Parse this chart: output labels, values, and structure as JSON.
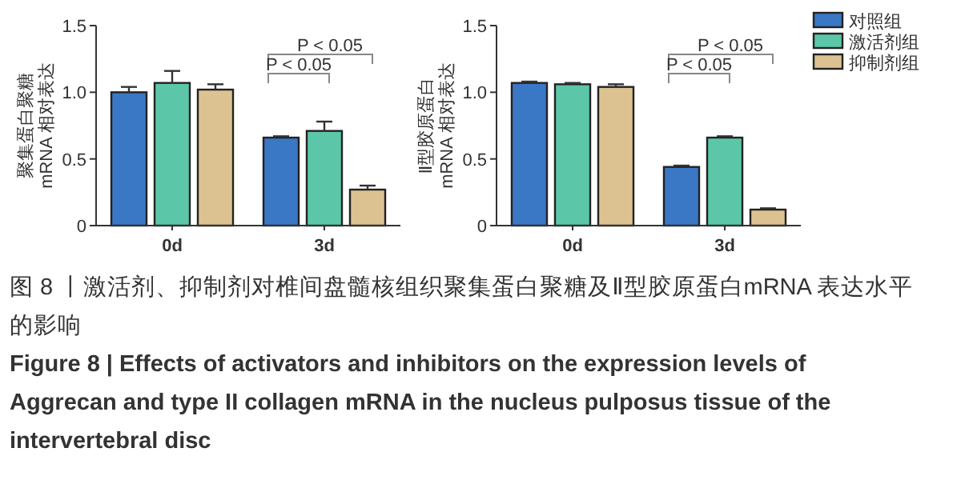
{
  "chart_data": [
    {
      "type": "bar",
      "ylabel": "聚集蛋白聚糖\nmRNA 相对表达",
      "categories": [
        "0d",
        "3d"
      ],
      "ylim": [
        0,
        1.5
      ],
      "yticks": [
        0,
        0.5,
        {
          "value": 1,
          "label": "1.0"
        },
        1.5
      ],
      "series": [
        {
          "color": "#3a77c4",
          "values": [
            1.0,
            0.66
          ],
          "errors": [
            0.04,
            0.01
          ]
        },
        {
          "color": "#5cc7a8",
          "values": [
            1.07,
            0.71
          ],
          "errors": [
            0.09,
            0.07
          ]
        },
        {
          "color": "#dcc291",
          "values": [
            1.02,
            0.27
          ],
          "errors": [
            0.04,
            0.03
          ]
        }
      ],
      "annotations": [
        "P < 0.05",
        "P < 0.05"
      ]
    },
    {
      "type": "bar",
      "ylabel": "Ⅱ型胶原蛋白\nmRNA 相对表达",
      "categories": [
        "0d",
        "3d"
      ],
      "ylim": [
        0,
        1.5
      ],
      "yticks": [
        0,
        0.5,
        {
          "value": 1,
          "label": "1.0"
        },
        1.5
      ],
      "legend": "top right",
      "series": [
        {
          "name": "对照组",
          "color": "#3a77c4",
          "values": [
            1.07,
            0.44
          ],
          "errors": [
            0.01,
            0.01
          ]
        },
        {
          "name": "激活剂组",
          "color": "#5cc7a8",
          "values": [
            1.06,
            0.66
          ],
          "errors": [
            0.01,
            0.01
          ]
        },
        {
          "name": "抑制剂组",
          "color": "#dcc291",
          "values": [
            1.04,
            0.12
          ],
          "errors": [
            0.02,
            0.01
          ]
        }
      ],
      "annotations": [
        "P < 0.05",
        "P < 0.05"
      ]
    },
    {
      "type": "other",
      "annotations": [
        "图 8 丨激活剂、抑制剂对椎间盘髓核组织聚集蛋白聚糖及Ⅱ型胶原蛋白mRNA 表达水平的影响",
        "Figure 8 | Effects of activators and inhibitors on the expression levels of Aggrecan and type II collagen mRNA in the nucleus pulposus tissue of the intervertebral disc"
      ]
    }
  ]
}
